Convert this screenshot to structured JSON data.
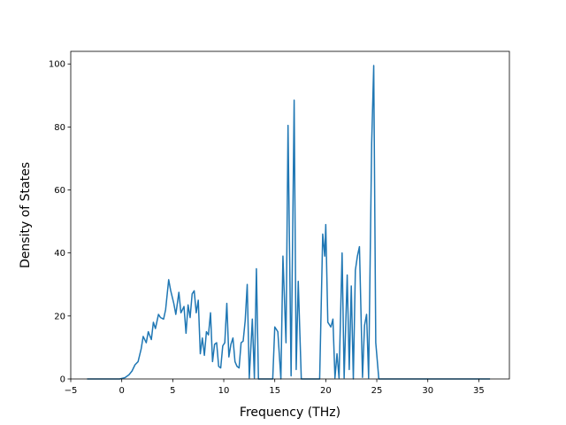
{
  "chart_data": {
    "type": "line",
    "title": "",
    "xlabel": "Frequency (THz)",
    "ylabel": "Density of States",
    "xlim": [
      -5.0,
      38.0
    ],
    "ylim": [
      0,
      104
    ],
    "xticks": [
      -5,
      0,
      5,
      10,
      15,
      20,
      25,
      30,
      35
    ],
    "yticks": [
      0,
      20,
      40,
      60,
      80,
      100
    ],
    "grid": false,
    "legend": "none",
    "series": [
      {
        "color": "#1f77b4",
        "points": [
          [
            -3.4,
            0
          ],
          [
            -0.2,
            0
          ],
          [
            0.3,
            0.4
          ],
          [
            0.7,
            1.3
          ],
          [
            1.0,
            2.5
          ],
          [
            1.3,
            4.5
          ],
          [
            1.6,
            5.5
          ],
          [
            1.9,
            9.5
          ],
          [
            2.1,
            13.5
          ],
          [
            2.4,
            11.5
          ],
          [
            2.6,
            15.0
          ],
          [
            2.9,
            12.5
          ],
          [
            3.1,
            18.0
          ],
          [
            3.3,
            16.0
          ],
          [
            3.6,
            20.5
          ],
          [
            3.8,
            19.5
          ],
          [
            4.1,
            19.0
          ],
          [
            4.3,
            22.0
          ],
          [
            4.6,
            31.5
          ],
          [
            4.8,
            28.0
          ],
          [
            5.1,
            24.0
          ],
          [
            5.3,
            20.5
          ],
          [
            5.6,
            27.5
          ],
          [
            5.8,
            21.0
          ],
          [
            6.1,
            23.0
          ],
          [
            6.3,
            14.5
          ],
          [
            6.5,
            23.5
          ],
          [
            6.7,
            19.5
          ],
          [
            6.9,
            27.0
          ],
          [
            7.1,
            28.0
          ],
          [
            7.3,
            21.0
          ],
          [
            7.5,
            25.0
          ],
          [
            7.7,
            8.0
          ],
          [
            7.9,
            13.0
          ],
          [
            8.1,
            7.5
          ],
          [
            8.3,
            15.0
          ],
          [
            8.5,
            14.0
          ],
          [
            8.7,
            21.0
          ],
          [
            8.9,
            5.5
          ],
          [
            9.1,
            11.0
          ],
          [
            9.3,
            11.5
          ],
          [
            9.5,
            4.0
          ],
          [
            9.7,
            3.5
          ],
          [
            9.9,
            10.5
          ],
          [
            10.1,
            11.5
          ],
          [
            10.3,
            24.0
          ],
          [
            10.5,
            7.0
          ],
          [
            10.7,
            11.0
          ],
          [
            10.9,
            13.0
          ],
          [
            11.1,
            5.5
          ],
          [
            11.3,
            4.0
          ],
          [
            11.5,
            3.5
          ],
          [
            11.7,
            11.5
          ],
          [
            11.9,
            12.0
          ],
          [
            12.1,
            18.5
          ],
          [
            12.3,
            30.0
          ],
          [
            12.5,
            0.3
          ],
          [
            12.8,
            19.0
          ],
          [
            13.0,
            0.3
          ],
          [
            13.2,
            35.0
          ],
          [
            13.4,
            0
          ],
          [
            14.8,
            0
          ],
          [
            15.0,
            16.5
          ],
          [
            15.3,
            15.0
          ],
          [
            15.6,
            0
          ],
          [
            15.8,
            39.0
          ],
          [
            16.1,
            11.5
          ],
          [
            16.3,
            80.5
          ],
          [
            16.6,
            1.0
          ],
          [
            16.9,
            88.5
          ],
          [
            17.1,
            3.0
          ],
          [
            17.3,
            31.0
          ],
          [
            17.6,
            0
          ],
          [
            19.4,
            0
          ],
          [
            19.7,
            46.0
          ],
          [
            19.9,
            39.0
          ],
          [
            20.0,
            49.0
          ],
          [
            20.2,
            18.0
          ],
          [
            20.5,
            16.5
          ],
          [
            20.7,
            19.0
          ],
          [
            20.9,
            0.3
          ],
          [
            21.1,
            8.0
          ],
          [
            21.3,
            0.3
          ],
          [
            21.6,
            40.0
          ],
          [
            21.8,
            0.3
          ],
          [
            22.1,
            33.0
          ],
          [
            22.3,
            3.0
          ],
          [
            22.5,
            29.5
          ],
          [
            22.7,
            0
          ],
          [
            22.9,
            34.5
          ],
          [
            23.1,
            39.0
          ],
          [
            23.3,
            42.0
          ],
          [
            23.6,
            0.5
          ],
          [
            23.8,
            17.0
          ],
          [
            24.0,
            20.5
          ],
          [
            24.2,
            0.3
          ],
          [
            24.5,
            75.0
          ],
          [
            24.7,
            99.5
          ],
          [
            24.9,
            11.5
          ],
          [
            25.2,
            0
          ],
          [
            36.1,
            0
          ]
        ]
      }
    ]
  }
}
